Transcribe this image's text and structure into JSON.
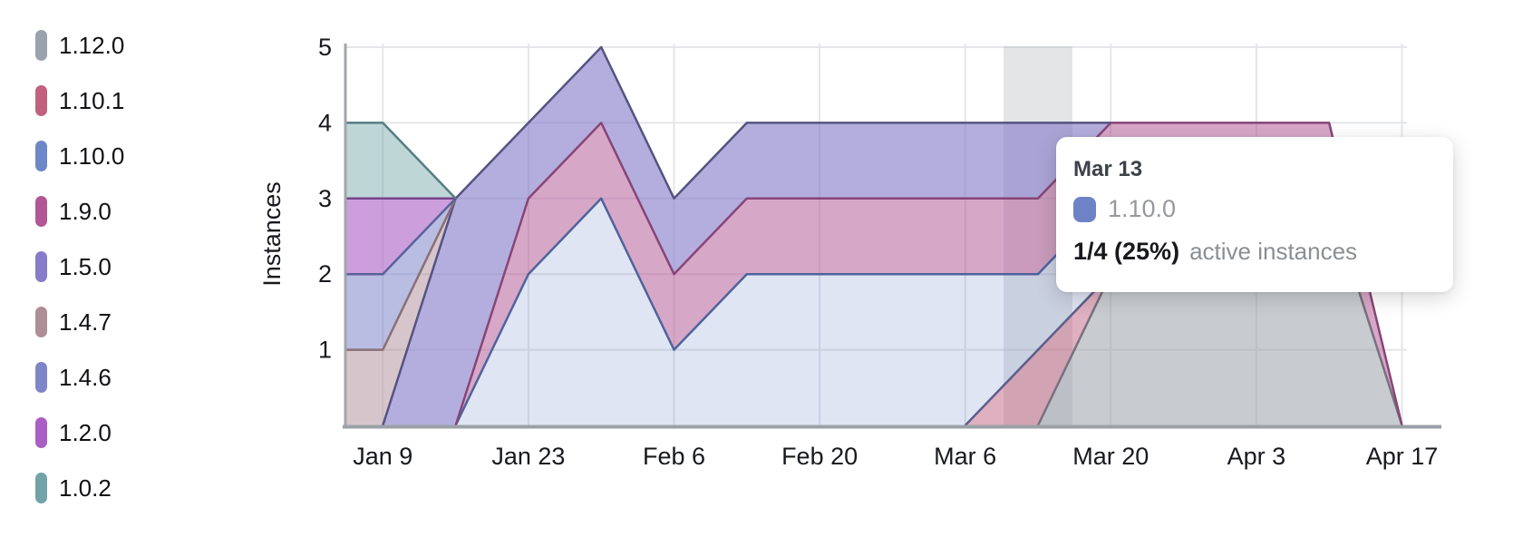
{
  "page": {
    "background": "#ffffff"
  },
  "chart": {
    "ylabel": "Instances",
    "y_tick_labels": [
      "1",
      "2",
      "3",
      "4",
      "5"
    ],
    "x_tick_labels": [
      "Jan 9",
      "Jan 23",
      "Feb 6",
      "Feb 20",
      "Mar 6",
      "Mar 20",
      "Apr 3",
      "Apr 17"
    ],
    "tooltip": {
      "date": "Mar 13",
      "series_label": "1.10.0",
      "swatch_color": "#6e83c6",
      "value_text": "1/4 (25%)",
      "suffix": "active instances"
    },
    "style": {
      "grid_color": "#e5e6e9",
      "axis_color": "#9ba1a7",
      "left_axis_color": "#a2a6ab",
      "highlight_color": "#aab0b6",
      "tick_label_color": "#17191d",
      "axis_title_color": "#17191d"
    },
    "chart_data": {
      "type": "area",
      "stacked": true,
      "title": "",
      "xlabel": "",
      "ylabel": "Instances",
      "ylim": [
        0,
        5
      ],
      "grid": true,
      "legend_position": "left",
      "x": [
        "Jan 2",
        "Jan 9",
        "Jan 16",
        "Jan 23",
        "Jan 30",
        "Feb 6",
        "Feb 13",
        "Feb 20",
        "Feb 27",
        "Mar 6",
        "Mar 13",
        "Mar 20",
        "Mar 27",
        "Apr 3",
        "Apr 10",
        "Apr 17"
      ],
      "hovered_x": "Mar 13",
      "hovered_series": "1.10.0",
      "hovered_value_text": "1/4 (25%) active instances",
      "series": [
        {
          "name": "1.12.0",
          "color": "#9aa3ac",
          "stroke": "#77707e",
          "fill_opacity": 0.55,
          "values": [
            0,
            0,
            0,
            0,
            0,
            0,
            0,
            0,
            0,
            0,
            0,
            2,
            3,
            3,
            3,
            0
          ]
        },
        {
          "name": "1.10.1",
          "color": "#c06180",
          "stroke": "#5b5e8c",
          "fill_opacity": 0.5,
          "values": [
            0,
            0,
            0,
            0,
            0,
            0,
            0,
            0,
            0,
            0,
            1,
            0,
            0,
            0,
            0,
            0
          ]
        },
        {
          "name": "1.10.0",
          "color": "#6e87c9",
          "stroke": "#4f639c",
          "fill_opacity": 0.22,
          "values": [
            0,
            0,
            0,
            2,
            3,
            1,
            2,
            2,
            2,
            2,
            1,
            1,
            0,
            0,
            0,
            0
          ]
        },
        {
          "name": "1.9.0",
          "color": "#b25795",
          "stroke": "#874577",
          "fill_opacity": 0.52,
          "values": [
            0,
            0,
            0,
            1,
            1,
            1,
            1,
            1,
            1,
            1,
            1,
            1,
            1,
            1,
            1,
            0
          ]
        },
        {
          "name": "1.5.0",
          "color": "#867cc9",
          "stroke": "#555380",
          "fill_opacity": 0.62,
          "values": [
            0,
            0,
            3,
            1,
            1,
            1,
            1,
            1,
            1,
            1,
            1,
            0,
            0,
            0,
            0,
            0
          ]
        },
        {
          "name": "1.4.7",
          "color": "#ae8e97",
          "stroke": "#8a6f78",
          "fill_opacity": 0.5,
          "values": [
            1,
            1,
            0,
            0,
            0,
            0,
            0,
            0,
            0,
            0,
            0,
            0,
            0,
            0,
            0,
            0
          ]
        },
        {
          "name": "1.4.6",
          "color": "#7e86c8",
          "stroke": "#5a619a",
          "fill_opacity": 0.55,
          "values": [
            1,
            1,
            0,
            0,
            0,
            0,
            0,
            0,
            0,
            0,
            0,
            0,
            0,
            0,
            0,
            0
          ]
        },
        {
          "name": "1.2.0",
          "color": "#aa5fc4",
          "stroke": "#74458c",
          "fill_opacity": 0.6,
          "values": [
            1,
            1,
            0,
            0,
            0,
            0,
            0,
            0,
            0,
            0,
            0,
            0,
            0,
            0,
            0,
            0
          ]
        },
        {
          "name": "1.0.2",
          "color": "#72a3a6",
          "stroke": "#567e81",
          "fill_opacity": 0.45,
          "values": [
            1,
            1,
            0,
            0,
            0,
            0,
            0,
            0,
            0,
            0,
            0,
            0,
            0,
            0,
            0,
            0
          ]
        }
      ]
    }
  }
}
